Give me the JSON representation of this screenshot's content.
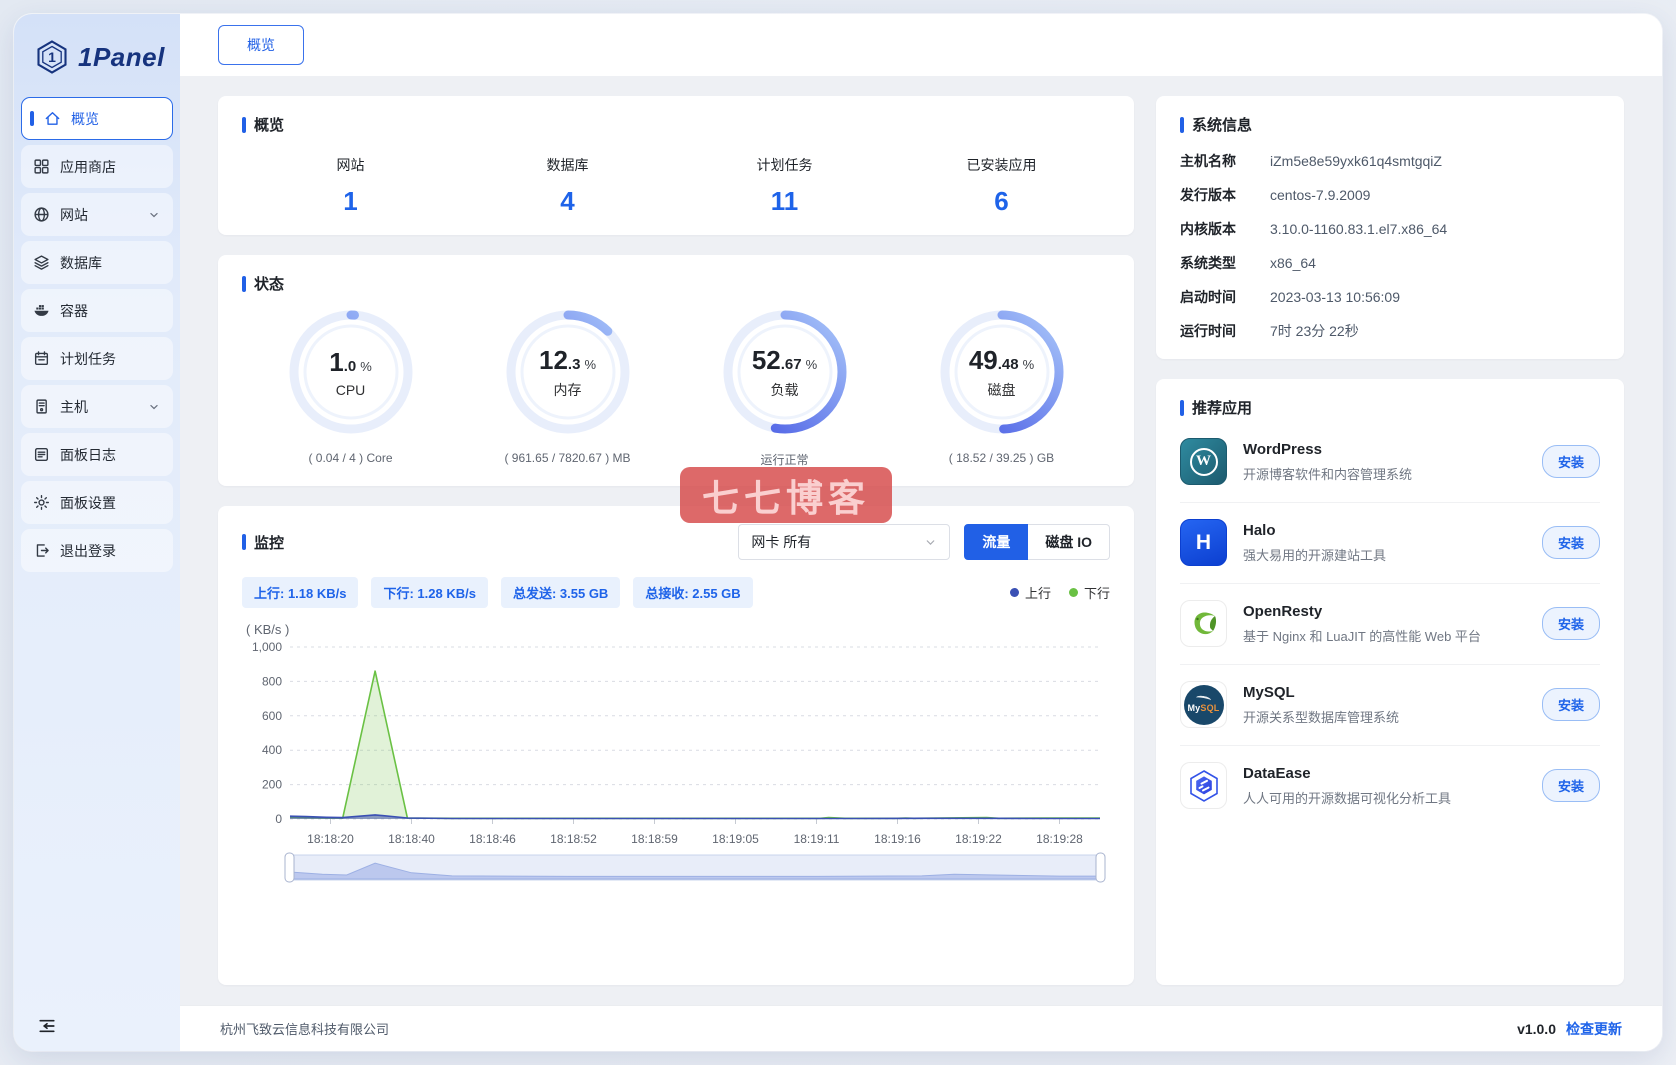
{
  "app": {
    "brand": "1Panel",
    "logo_glyph": "1"
  },
  "sidebar": {
    "items": [
      {
        "label": "概览",
        "icon": "home",
        "active": true
      },
      {
        "label": "应用商店",
        "icon": "appstore"
      },
      {
        "label": "网站",
        "icon": "globe",
        "chevron": true
      },
      {
        "label": "数据库",
        "icon": "database"
      },
      {
        "label": "容器",
        "icon": "docker"
      },
      {
        "label": "计划任务",
        "icon": "calendar"
      },
      {
        "label": "主机",
        "icon": "host",
        "chevron": true
      },
      {
        "label": "面板日志",
        "icon": "log"
      },
      {
        "label": "面板设置",
        "icon": "settings"
      },
      {
        "label": "退出登录",
        "icon": "logout"
      }
    ]
  },
  "tabbar": {
    "active_tab": "概览"
  },
  "overview": {
    "title": "概览",
    "stats": [
      {
        "label": "网站",
        "value": "1"
      },
      {
        "label": "数据库",
        "value": "4"
      },
      {
        "label": "计划任务",
        "value": "11"
      },
      {
        "label": "已安装应用",
        "value": "6"
      }
    ]
  },
  "status": {
    "title": "状态",
    "gauges": [
      {
        "label": "CPU",
        "value_int": "1",
        "value_dec": ".0",
        "unit": "%",
        "percent": 1.0,
        "sub": "( 0.04 / 4 ) Core"
      },
      {
        "label": "内存",
        "value_int": "12",
        "value_dec": ".3",
        "unit": "%",
        "percent": 12.3,
        "sub": "( 961.65 / 7820.67 ) MB"
      },
      {
        "label": "负载",
        "value_int": "52",
        "value_dec": ".67",
        "unit": "%",
        "percent": 52.67,
        "sub": "运行正常"
      },
      {
        "label": "磁盘",
        "value_int": "49",
        "value_dec": ".48",
        "unit": "%",
        "percent": 49.48,
        "sub": "( 18.52 / 39.25 ) GB"
      }
    ]
  },
  "monitor": {
    "title": "监控",
    "nic_select": "网卡 所有",
    "traffic_button": "流量",
    "disk_io_button": "磁盘 IO",
    "tags": [
      "上行: 1.18 KB/s",
      "下行: 1.28 KB/s",
      "总发送: 3.55 GB",
      "总接收: 2.55 GB"
    ],
    "legend": [
      {
        "label": "上行",
        "color": "#3a50b4"
      },
      {
        "label": "下行",
        "color": "#6ac144"
      }
    ]
  },
  "chart_data": {
    "type": "area",
    "title": "网卡流量监控",
    "ylabel": "( KB/s )",
    "ylim": [
      0,
      1000
    ],
    "grid": true,
    "legend_position": "top-right",
    "ytick_values": [
      0,
      200,
      400,
      600,
      800,
      1000
    ],
    "yticks": [
      "0",
      "200",
      "400",
      "600",
      "800",
      "1,000"
    ],
    "x_ticks": [
      "18:18:20",
      "18:18:40",
      "18:18:46",
      "18:18:52",
      "18:18:59",
      "18:19:05",
      "18:19:11",
      "18:19:16",
      "18:19:22",
      "18:19:28"
    ],
    "series": [
      {
        "name": "上行",
        "color": "#3a50b4",
        "area": "rgba(62,81,172,0.55)",
        "points": [
          [
            0,
            16
          ],
          [
            0.02,
            14
          ],
          [
            0.045,
            10
          ],
          [
            0.065,
            8
          ],
          [
            0.105,
            24
          ],
          [
            0.145,
            6
          ],
          [
            0.2,
            3
          ],
          [
            0.3,
            3
          ],
          [
            0.4,
            3
          ],
          [
            0.5,
            3
          ],
          [
            0.6,
            3
          ],
          [
            0.7,
            3
          ],
          [
            0.78,
            4
          ],
          [
            0.86,
            4
          ],
          [
            0.93,
            3
          ],
          [
            1,
            3
          ]
        ]
      },
      {
        "name": "下行",
        "color": "#6ac144",
        "area": "rgba(118,196,77,0.22)",
        "points": [
          [
            0,
            10
          ],
          [
            0.02,
            8
          ],
          [
            0.045,
            6
          ],
          [
            0.065,
            5
          ],
          [
            0.105,
            860
          ],
          [
            0.145,
            5
          ],
          [
            0.2,
            4
          ],
          [
            0.3,
            4
          ],
          [
            0.4,
            4
          ],
          [
            0.5,
            4
          ],
          [
            0.6,
            4
          ],
          [
            0.655,
            4
          ],
          [
            0.665,
            8
          ],
          [
            0.685,
            4
          ],
          [
            0.75,
            4
          ],
          [
            0.76,
            6
          ],
          [
            0.77,
            4
          ],
          [
            0.86,
            8
          ],
          [
            0.875,
            4
          ],
          [
            0.93,
            5
          ],
          [
            1,
            6
          ]
        ]
      }
    ],
    "slider_profile": [
      [
        0,
        0.32
      ],
      [
        0.04,
        0.22
      ],
      [
        0.07,
        0.18
      ],
      [
        0.105,
        0.72
      ],
      [
        0.15,
        0.28
      ],
      [
        0.2,
        0.14
      ],
      [
        0.35,
        0.12
      ],
      [
        0.5,
        0.12
      ],
      [
        0.65,
        0.12
      ],
      [
        0.78,
        0.14
      ],
      [
        0.82,
        0.22
      ],
      [
        0.87,
        0.18
      ],
      [
        0.95,
        0.13
      ],
      [
        1,
        0.13
      ]
    ]
  },
  "system_info": {
    "title": "系统信息",
    "rows": [
      {
        "label": "主机名称",
        "value": "iZm5e8e59yxk61q4smtgqiZ"
      },
      {
        "label": "发行版本",
        "value": "centos-7.9.2009"
      },
      {
        "label": "内核版本",
        "value": "3.10.0-1160.83.1.el7.x86_64"
      },
      {
        "label": "系统类型",
        "value": "x86_64"
      },
      {
        "label": "启动时间",
        "value": "2023-03-13 10:56:09"
      },
      {
        "label": "运行时间",
        "value": "7时 23分 22秒"
      }
    ]
  },
  "apps": {
    "title": "推荐应用",
    "install_label": "安装",
    "items": [
      {
        "name": "WordPress",
        "desc": "开源博客软件和内容管理系统",
        "icon": "wordpress",
        "icon_letter": "W"
      },
      {
        "name": "Halo",
        "desc": "强大易用的开源建站工具",
        "icon": "halo",
        "icon_letter": "H"
      },
      {
        "name": "OpenResty",
        "desc": "基于 Nginx 和 LuaJIT 的高性能 Web 平台",
        "icon": "openresty"
      },
      {
        "name": "MySQL",
        "desc": "开源关系型数据库管理系统",
        "icon": "mysql",
        "icon_text_1": "My",
        "icon_text_2": "SQL"
      },
      {
        "name": "DataEase",
        "desc": "人人可用的开源数据可视化分析工具",
        "icon": "dataease"
      }
    ]
  },
  "footer": {
    "company": "杭州飞致云信息科技有限公司",
    "version": "v1.0.0",
    "update_link": "检查更新"
  },
  "watermark": {
    "text": "七七博客"
  },
  "colors": {
    "primary": "#2160e6",
    "stat_number": "#1e63e9",
    "gauge_track": "#e8eefb",
    "gauge_start": "#4456e3",
    "gauge_end": "#a9c6f9",
    "up_series": "#3a50b4",
    "down_series": "#6ac144",
    "watermark_bg": "#d64848"
  }
}
